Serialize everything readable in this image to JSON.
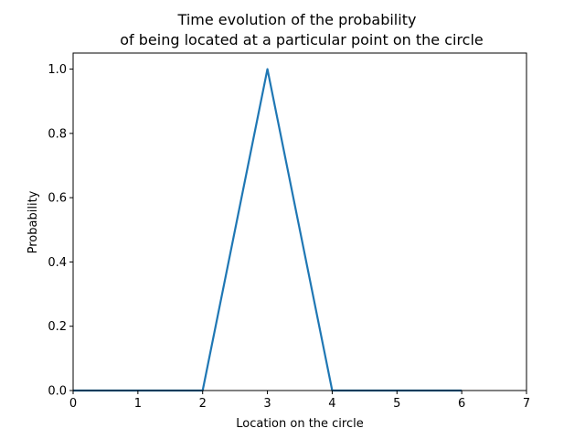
{
  "chart_data": {
    "type": "line",
    "title_lines": [
      "Time evolution of the probability",
      "of being located at a particular point on the circle"
    ],
    "xlabel": "Location on the circle",
    "ylabel": "Probability",
    "xlim": [
      0,
      7
    ],
    "ylim": [
      0,
      1.05
    ],
    "x_ticks": [
      0,
      1,
      2,
      3,
      4,
      5,
      6,
      7
    ],
    "x_tick_labels": [
      "0",
      "1",
      "2",
      "3",
      "4",
      "5",
      "6",
      "7"
    ],
    "y_ticks": [
      0.0,
      0.2,
      0.4,
      0.6,
      0.8,
      1.0
    ],
    "y_tick_labels": [
      "0.0",
      "0.2",
      "0.4",
      "0.6",
      "0.8",
      "1.0"
    ],
    "grid": false,
    "series": [
      {
        "color": "#1f77b4",
        "x": [
          0,
          1,
          2,
          3,
          4,
          5,
          6
        ],
        "values": [
          0,
          0,
          0,
          1,
          0,
          0,
          0
        ]
      }
    ]
  }
}
